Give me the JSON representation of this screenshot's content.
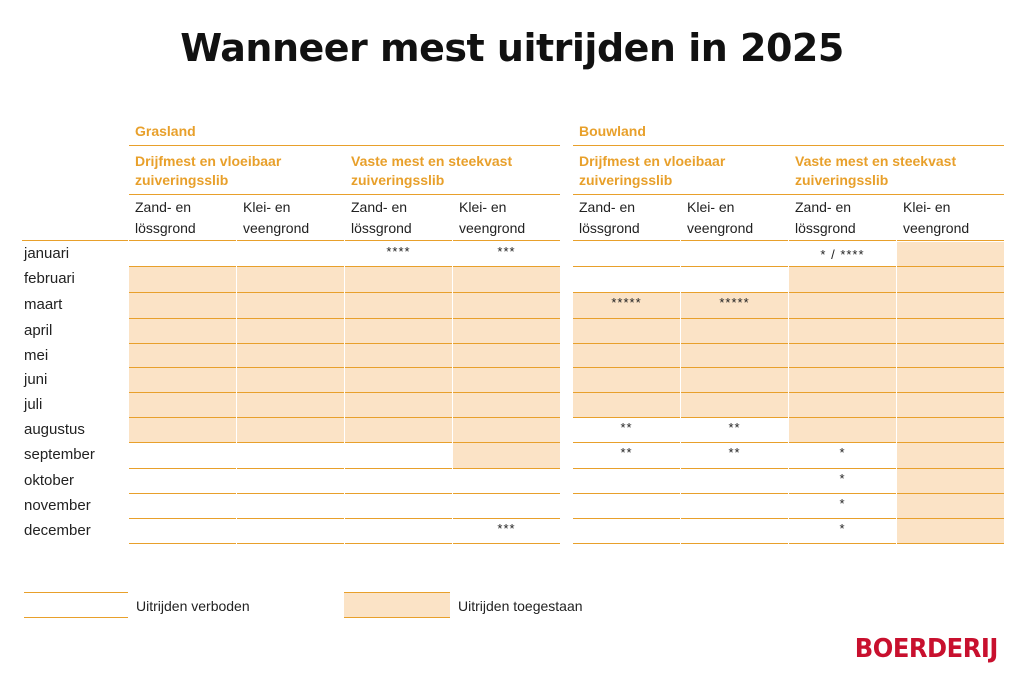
{
  "title": "Wanneer mest uitrijden in 2025",
  "brand": {
    "logo_text": "BOERDERIJ",
    "logo_color": "#c8102e"
  },
  "colors": {
    "accent": "#e8a02b",
    "allowed_fill": "#fbe3c6"
  },
  "chart_data": {
    "type": "table",
    "title": "Wanneer mest uitrijden in 2025",
    "months": [
      "januari",
      "februari",
      "maart",
      "april",
      "mei",
      "juni",
      "juli",
      "augustus",
      "september",
      "oktober",
      "november",
      "december"
    ],
    "groups": [
      {
        "name": "Grasland",
        "subgroups": [
          {
            "name": "Drijfmest en vloeibaar zuiveringsslib",
            "columns": [
              {
                "name": "Zand- en lössgrond",
                "allowed": [
                  0,
                  1,
                  1,
                  1,
                  1,
                  1,
                  1,
                  1,
                  0,
                  0,
                  0,
                  0
                ],
                "notes": [
                  "",
                  "",
                  "",
                  "",
                  "",
                  "",
                  "",
                  "",
                  "",
                  "",
                  "",
                  ""
                ]
              },
              {
                "name": "Klei- en veengrond",
                "allowed": [
                  0,
                  1,
                  1,
                  1,
                  1,
                  1,
                  1,
                  1,
                  0,
                  0,
                  0,
                  0
                ],
                "notes": [
                  "",
                  "",
                  "",
                  "",
                  "",
                  "",
                  "",
                  "",
                  "",
                  "",
                  "",
                  ""
                ]
              }
            ]
          },
          {
            "name": "Vaste mest en steekvast zuiveringsslib",
            "columns": [
              {
                "name": "Zand- en lössgrond",
                "allowed": [
                  0,
                  1,
                  1,
                  1,
                  1,
                  1,
                  1,
                  1,
                  0,
                  0,
                  0,
                  0
                ],
                "notes": [
                  "****",
                  "",
                  "",
                  "",
                  "",
                  "",
                  "",
                  "",
                  "",
                  "",
                  "",
                  ""
                ]
              },
              {
                "name": "Klei- en veengrond",
                "allowed": [
                  0,
                  1,
                  1,
                  1,
                  1,
                  1,
                  1,
                  1,
                  1,
                  0,
                  0,
                  0
                ],
                "notes": [
                  "***",
                  "",
                  "",
                  "",
                  "",
                  "",
                  "",
                  "",
                  "",
                  "",
                  "",
                  "***"
                ]
              }
            ]
          }
        ]
      },
      {
        "name": "Bouwland",
        "subgroups": [
          {
            "name": "Drijfmest en vloeibaar zuiveringsslib",
            "columns": [
              {
                "name": "Zand- en lössgrond",
                "allowed": [
                  0,
                  0,
                  1,
                  1,
                  1,
                  1,
                  1,
                  0,
                  0,
                  0,
                  0,
                  0
                ],
                "notes": [
                  "",
                  "",
                  "*****",
                  "",
                  "",
                  "",
                  "",
                  "**",
                  "**",
                  "",
                  "",
                  ""
                ]
              },
              {
                "name": "Klei- en veengrond",
                "allowed": [
                  0,
                  0,
                  1,
                  1,
                  1,
                  1,
                  1,
                  0,
                  0,
                  0,
                  0,
                  0
                ],
                "notes": [
                  "",
                  "",
                  "*****",
                  "",
                  "",
                  "",
                  "",
                  "**",
                  "**",
                  "",
                  "",
                  ""
                ]
              }
            ]
          },
          {
            "name": "Vaste mest en steekvast zuiveringsslib",
            "columns": [
              {
                "name": "Zand- en lössgrond",
                "allowed": [
                  0,
                  1,
                  1,
                  1,
                  1,
                  1,
                  1,
                  1,
                  0,
                  0,
                  0,
                  0
                ],
                "notes": [
                  "* / ****",
                  "",
                  "",
                  "",
                  "",
                  "",
                  "",
                  "",
                  "*",
                  "*",
                  "*",
                  "*"
                ]
              },
              {
                "name": "Klei- en veengrond",
                "allowed": [
                  1,
                  1,
                  1,
                  1,
                  1,
                  1,
                  1,
                  1,
                  1,
                  1,
                  1,
                  1
                ],
                "notes": [
                  "",
                  "",
                  "",
                  "",
                  "",
                  "",
                  "",
                  "",
                  "",
                  "",
                  "",
                  ""
                ]
              }
            ]
          }
        ]
      }
    ],
    "legend": [
      {
        "label": "Uitrijden verboden",
        "allowed": false
      },
      {
        "label": "Uitrijden toegestaan",
        "allowed": true
      }
    ]
  }
}
